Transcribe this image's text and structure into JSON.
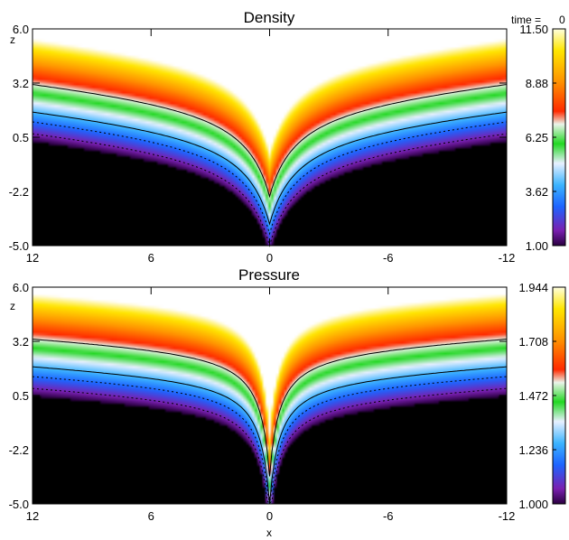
{
  "time_label": "time =",
  "time_value": "0",
  "chart_data": [
    {
      "type": "heatmap",
      "title": "Density",
      "xlabel": "",
      "ylabel": "z",
      "xlim": [
        12,
        -12
      ],
      "ylim": [
        -5.0,
        6.0
      ],
      "x_ticks": [
        "12",
        "6",
        "0",
        "-6",
        "-12"
      ],
      "y_ticks": [
        "6.0",
        "3.2",
        "0.5",
        "-2.2",
        "-5.0"
      ],
      "colorbar_ticks": [
        "11.50",
        "8.88",
        "6.25",
        "3.62",
        "1.00"
      ],
      "colorbar_range": [
        1.0,
        11.5
      ],
      "colormap": [
        "#2a0040",
        "#7a1fb0",
        "#1e64ff",
        "#3cb4ff",
        "#e8f0ff",
        "#22d822",
        "#eaf3ea",
        "#ff2a00",
        "#ff9400",
        "#ffe600",
        "#ffffff"
      ],
      "grid": false,
      "field": {
        "dip_width_x": 1.4,
        "dip_depth_z": 5.0,
        "shelf_z": 0.5,
        "outer_slope": 0.1
      }
    },
    {
      "type": "heatmap",
      "title": "Pressure",
      "xlabel": "x",
      "ylabel": "z",
      "xlim": [
        12,
        -12
      ],
      "ylim": [
        -5.0,
        6.0
      ],
      "x_ticks": [
        "12",
        "6",
        "0",
        "-6",
        "-12"
      ],
      "y_ticks": [
        "6.0",
        "3.2",
        "0.5",
        "-2.2",
        "-5.0"
      ],
      "colorbar_ticks": [
        "1.944",
        "1.708",
        "1.472",
        "1.236",
        "1.000"
      ],
      "colorbar_range": [
        1.0,
        1.944
      ],
      "colormap": [
        "#2a0040",
        "#7a1fb0",
        "#1e64ff",
        "#3cb4ff",
        "#e8f0ff",
        "#22d822",
        "#eaf3ea",
        "#ff2a00",
        "#ff9400",
        "#ffe600",
        "#ffffff"
      ],
      "grid": false,
      "field": {
        "dip_width_x": 0.5,
        "dip_depth_z": 6.5,
        "shelf_z": 0.9,
        "outer_slope": 0.06
      }
    }
  ]
}
